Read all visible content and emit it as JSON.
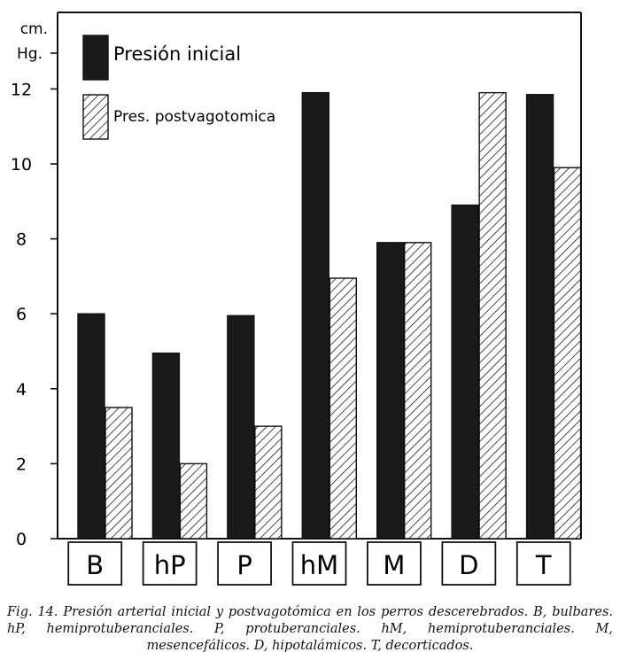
{
  "chart_data": {
    "type": "bar",
    "unit_line1": "cm.",
    "unit_line2": "Hg.",
    "categories": [
      "B",
      "hP",
      "P",
      "hM",
      "M",
      "D",
      "T"
    ],
    "series": [
      {
        "name": "Presión inicial",
        "pattern": "solid",
        "color": "#1a1a1a",
        "values": [
          6.0,
          4.95,
          5.95,
          11.9,
          7.9,
          8.9,
          11.85
        ]
      },
      {
        "name": "Pres. postvagotomica",
        "pattern": "hatch",
        "color": "#1a1a1a",
        "values": [
          3.5,
          2.0,
          3.0,
          6.95,
          7.9,
          11.9,
          9.9
        ]
      }
    ],
    "yticks": [
      0,
      2,
      4,
      6,
      8,
      10,
      12
    ],
    "ylim": [
      0,
      13.5
    ],
    "legend": "top-left"
  },
  "caption": "Fig. 14. Presión arterial inicial y postvagotómica en los perros descerebrados. B, bulbares. hP, hemiprotuberanciales. P, protuberanciales. hM, hemiprotuberanciales. M, mesencefálicos. D, hipotalámicos. T, decorticados."
}
